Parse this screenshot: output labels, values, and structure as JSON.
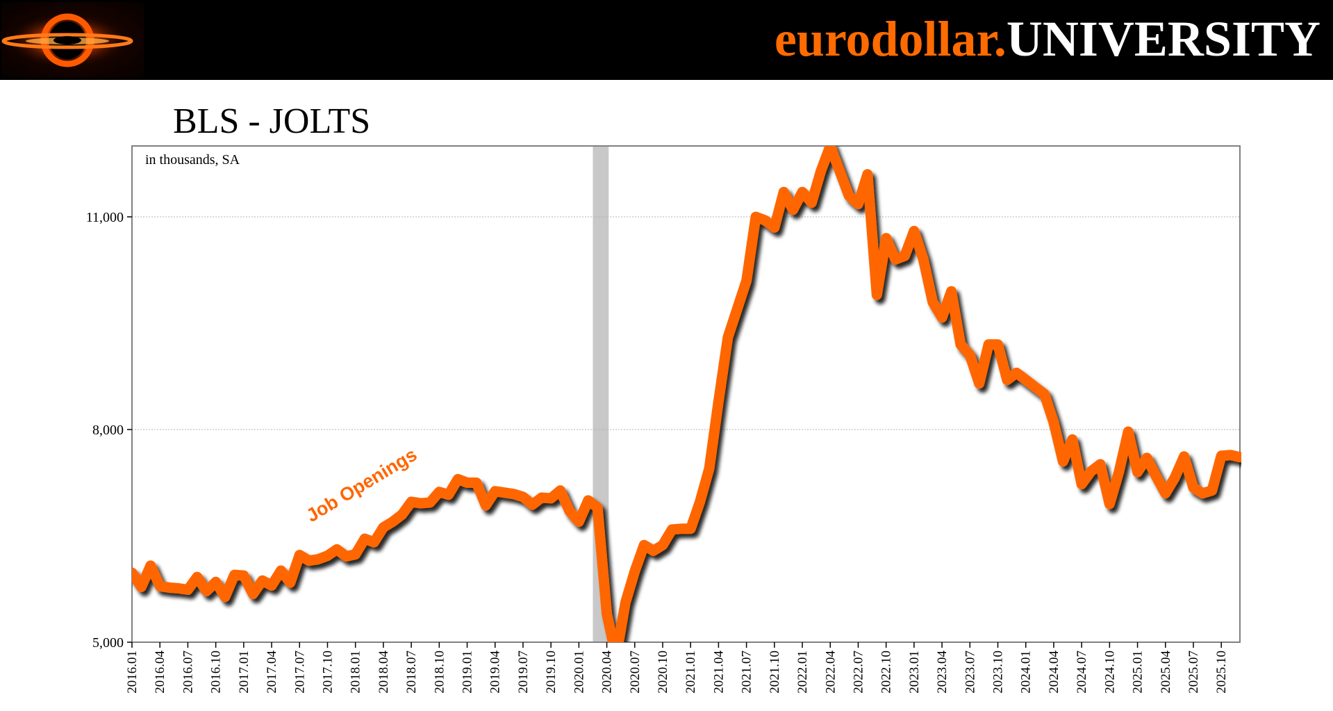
{
  "header": {
    "logo_icon": "black-hole-ring-logo",
    "brand_part1": "eurodollar.",
    "brand_part2": "UNIVERSITY",
    "brand_colors": {
      "accent": "#ff6b00",
      "text": "#ffffff",
      "background": "#000000"
    }
  },
  "chart_data": {
    "type": "line",
    "title": "BLS - JOLTS",
    "subtitle": "in thousands, SA",
    "xlabel": "",
    "ylabel": "",
    "ylim": [
      5000,
      12000
    ],
    "yticks": [
      5000,
      8000,
      11000
    ],
    "ytick_labels": [
      "5,000",
      "8,000",
      "11,000"
    ],
    "grid": true,
    "recession_shading": {
      "start": "2020.02",
      "end": "2020.04",
      "color": "#c8c8c8"
    },
    "xtick_labels": [
      "2016.01",
      "2016.04",
      "2016.07",
      "2016.10",
      "2017.01",
      "2017.04",
      "2017.07",
      "2017.10",
      "2018.01",
      "2018.04",
      "2018.07",
      "2018.10",
      "2019.01",
      "2019.04",
      "2019.07",
      "2019.10",
      "2020.01",
      "2020.04",
      "2020.07",
      "2020.10",
      "2021.01",
      "2021.04",
      "2021.07",
      "2021.10",
      "2022.01",
      "2022.04",
      "2022.07",
      "2022.10",
      "2023.01",
      "2023.04",
      "2023.07",
      "2023.10",
      "2024.01",
      "2024.04",
      "2024.07",
      "2024.10",
      "2025.01",
      "2025.04",
      "2025.07",
      "2025.10"
    ],
    "x_start": "2016.01",
    "series": [
      {
        "name": "Job Openings",
        "color": "#ff6600",
        "values": [
          5980,
          5780,
          6080,
          5790,
          5770,
          5760,
          5740,
          5920,
          5720,
          5850,
          5640,
          5950,
          5940,
          5680,
          5870,
          5800,
          6010,
          5840,
          6230,
          6150,
          6170,
          6220,
          6310,
          6210,
          6240,
          6460,
          6410,
          6620,
          6700,
          6800,
          6980,
          6960,
          6970,
          7120,
          7080,
          7300,
          7250,
          7250,
          6930,
          7130,
          7110,
          7090,
          7050,
          6940,
          7040,
          7030,
          7140,
          6850,
          6700,
          7000,
          6900,
          5400,
          4800,
          5560,
          6000,
          6370,
          6290,
          6370,
          6590,
          6600,
          6600,
          6980,
          7450,
          8400,
          9300,
          9700,
          10100,
          11000,
          10950,
          10850,
          11350,
          11100,
          11350,
          11200,
          11650,
          12000,
          11650,
          11300,
          11180,
          11600,
          9900,
          10700,
          10400,
          10450,
          10800,
          10400,
          9800,
          9580,
          9950,
          9200,
          9050,
          8650,
          9200,
          9200,
          8700,
          8800,
          8700,
          8600,
          8500,
          8100,
          7550,
          7860,
          7230,
          7410,
          7510,
          6950,
          7400,
          7970,
          7400,
          7600,
          7340,
          7100,
          7320,
          7620,
          7180,
          7100,
          7140,
          7630,
          7640,
          7610
        ]
      }
    ],
    "annotations": [
      {
        "text": "Job Openings",
        "color": "#ff6600"
      }
    ]
  }
}
